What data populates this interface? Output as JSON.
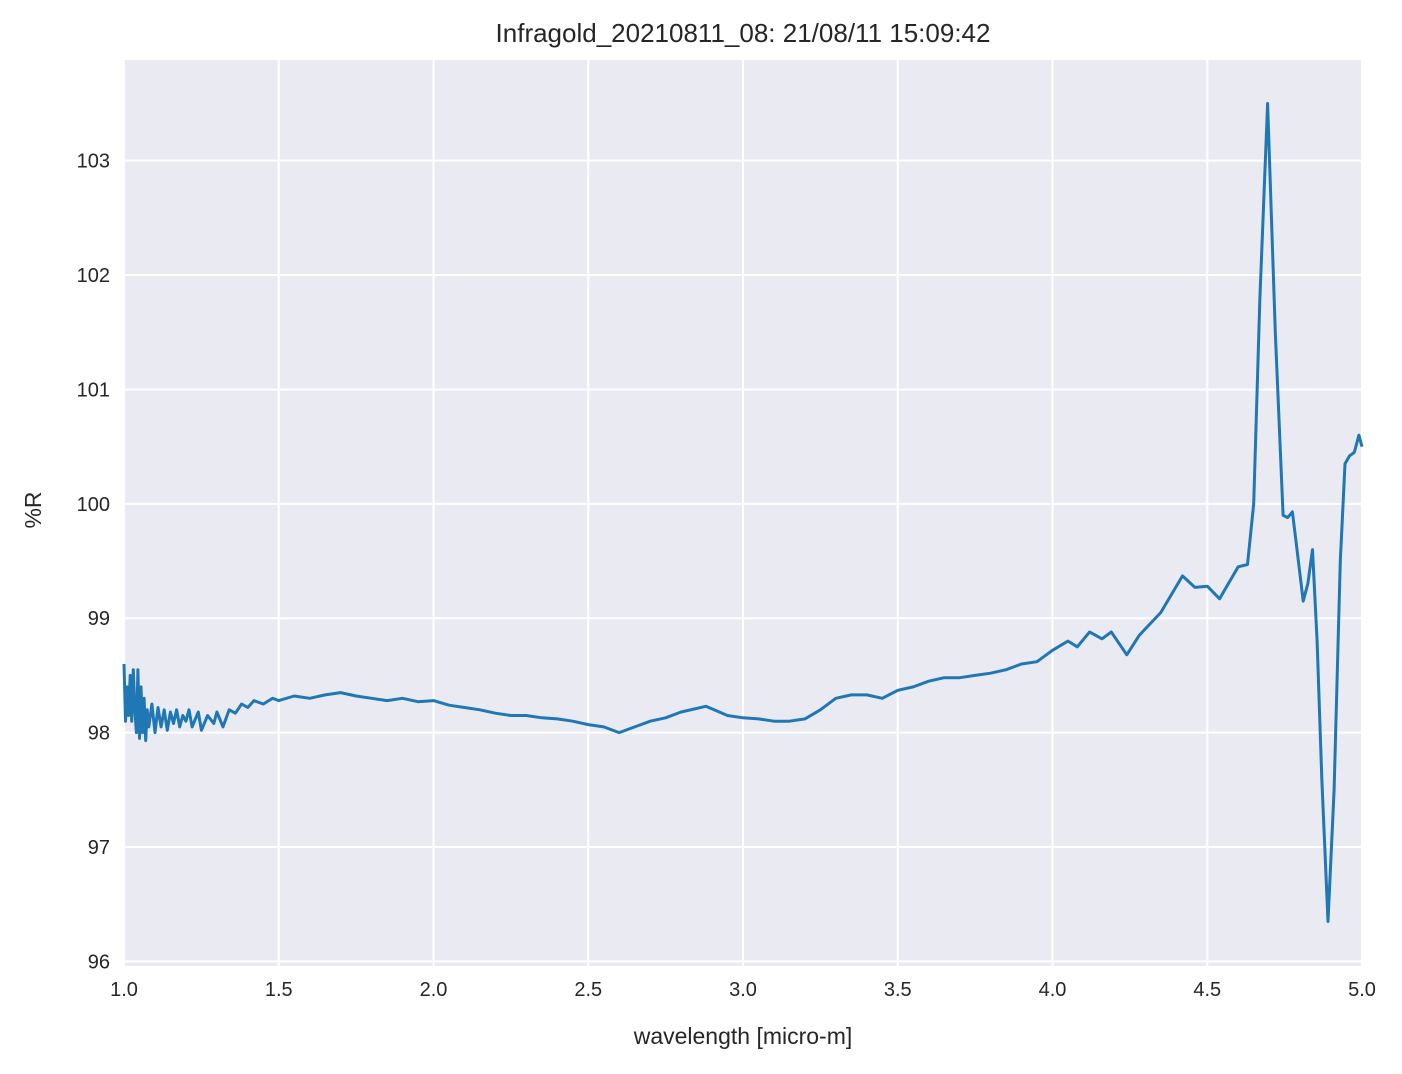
{
  "chart_data": {
    "type": "line",
    "title": "Infragold_20210811_08:  21/08/11 15:09:42",
    "xlabel": "wavelength [micro-m]",
    "ylabel": "%R",
    "xlim": [
      1.0,
      5.0
    ],
    "ylim": [
      95.96,
      103.88
    ],
    "xticks": [
      1.0,
      1.5,
      2.0,
      2.5,
      3.0,
      3.5,
      4.0,
      4.5,
      5.0
    ],
    "xtick_labels": [
      "1.0",
      "1.5",
      "2.0",
      "2.5",
      "3.0",
      "3.5",
      "4.0",
      "4.5",
      "5.0"
    ],
    "yticks": [
      96,
      97,
      98,
      99,
      100,
      101,
      102,
      103
    ],
    "ytick_labels": [
      "96",
      "97",
      "98",
      "99",
      "100",
      "101",
      "102",
      "103"
    ],
    "grid": true,
    "background_color": "#eaeaf2",
    "series": [
      {
        "color": "#1f77b4",
        "x": [
          1.0,
          1.005,
          1.01,
          1.015,
          1.02,
          1.025,
          1.03,
          1.035,
          1.04,
          1.045,
          1.05,
          1.055,
          1.06,
          1.065,
          1.07,
          1.075,
          1.08,
          1.09,
          1.1,
          1.11,
          1.12,
          1.13,
          1.14,
          1.15,
          1.16,
          1.17,
          1.18,
          1.19,
          1.2,
          1.21,
          1.22,
          1.24,
          1.25,
          1.27,
          1.29,
          1.3,
          1.32,
          1.34,
          1.36,
          1.38,
          1.4,
          1.42,
          1.45,
          1.48,
          1.5,
          1.55,
          1.6,
          1.65,
          1.7,
          1.75,
          1.8,
          1.85,
          1.9,
          1.95,
          2.0,
          2.05,
          2.1,
          2.15,
          2.2,
          2.25,
          2.3,
          2.35,
          2.4,
          2.45,
          2.5,
          2.55,
          2.6,
          2.65,
          2.7,
          2.75,
          2.8,
          2.88,
          2.95,
          3.0,
          3.05,
          3.1,
          3.15,
          3.2,
          3.25,
          3.3,
          3.35,
          3.4,
          3.45,
          3.5,
          3.55,
          3.6,
          3.65,
          3.7,
          3.75,
          3.8,
          3.85,
          3.9,
          3.95,
          4.0,
          4.05,
          4.08,
          4.12,
          4.16,
          4.19,
          4.24,
          4.28,
          4.35,
          4.42,
          4.46,
          4.5,
          4.54,
          4.6,
          4.63,
          4.65,
          4.67,
          4.695,
          4.72,
          4.745,
          4.76,
          4.775,
          4.79,
          4.81,
          4.825,
          4.84,
          4.855,
          4.87,
          4.89,
          4.91,
          4.93,
          4.945,
          4.96,
          4.975,
          4.99,
          5.0
        ],
        "y": [
          98.6,
          98.1,
          98.4,
          98.15,
          98.5,
          98.1,
          98.55,
          98.2,
          98.0,
          98.55,
          97.95,
          98.4,
          98.0,
          98.3,
          97.93,
          98.2,
          98.05,
          98.25,
          98.0,
          98.22,
          98.05,
          98.2,
          98.02,
          98.18,
          98.08,
          98.2,
          98.05,
          98.15,
          98.1,
          98.2,
          98.05,
          98.18,
          98.02,
          98.15,
          98.08,
          98.18,
          98.05,
          98.2,
          98.17,
          98.25,
          98.22,
          98.28,
          98.25,
          98.3,
          98.28,
          98.32,
          98.3,
          98.33,
          98.35,
          98.32,
          98.3,
          98.28,
          98.3,
          98.27,
          98.28,
          98.24,
          98.22,
          98.2,
          98.17,
          98.15,
          98.15,
          98.13,
          98.12,
          98.1,
          98.07,
          98.05,
          98.0,
          98.05,
          98.1,
          98.13,
          98.18,
          98.23,
          98.15,
          98.13,
          98.12,
          98.1,
          98.1,
          98.12,
          98.2,
          98.3,
          98.33,
          98.33,
          98.3,
          98.37,
          98.4,
          98.45,
          98.48,
          98.48,
          98.5,
          98.52,
          98.55,
          98.6,
          98.62,
          98.72,
          98.8,
          98.75,
          98.88,
          98.82,
          98.88,
          98.68,
          98.85,
          99.05,
          99.37,
          99.27,
          99.28,
          99.17,
          99.45,
          99.47,
          100.0,
          101.8,
          103.5,
          101.5,
          99.9,
          99.88,
          99.93,
          99.6,
          99.15,
          99.3,
          99.6,
          98.8,
          97.6,
          96.35,
          97.5,
          99.5,
          100.35,
          100.42,
          100.45,
          100.6,
          100.5
        ]
      }
    ]
  }
}
